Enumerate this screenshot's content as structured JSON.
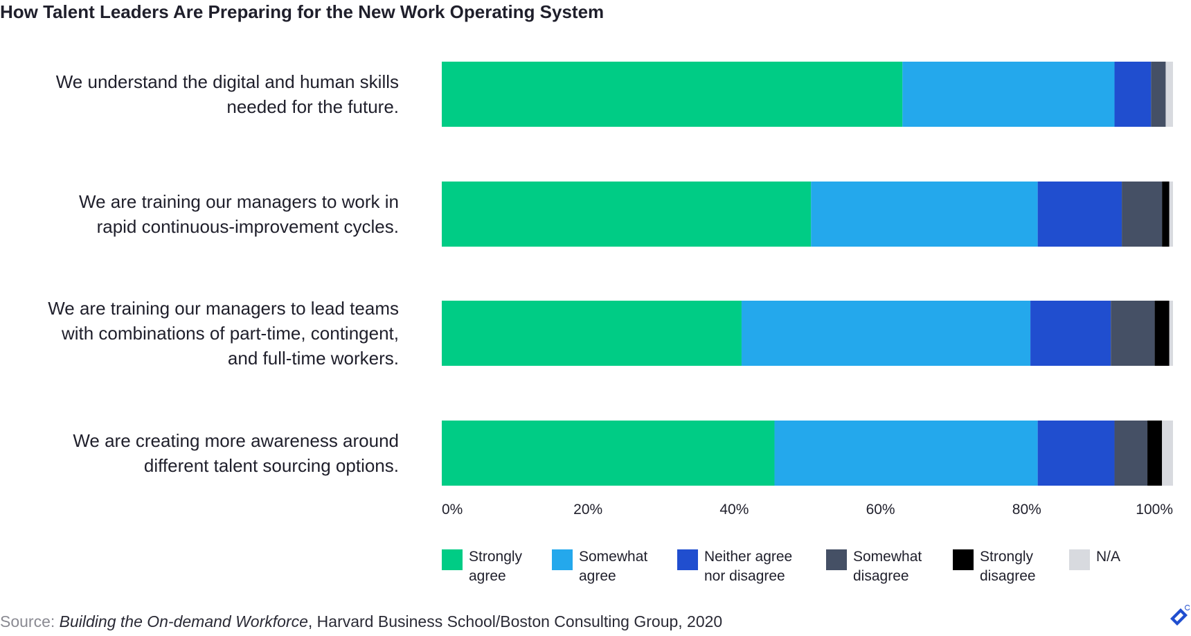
{
  "chart_data": {
    "type": "bar",
    "orientation": "horizontal",
    "stacked": true,
    "title": "How Talent Leaders Are Preparing for the New Work Operating System",
    "categories": [
      [
        "We understand the digital and human skills",
        "needed for the future."
      ],
      [
        "We are training our managers to work in",
        "rapid continuous-improvement cycles."
      ],
      [
        "We are training our managers to lead teams",
        "with combinations of part-time, contingent,",
        "and full-time workers."
      ],
      [
        "We are creating more awareness around",
        "different talent sourcing options."
      ]
    ],
    "series": [
      {
        "name": [
          "Strongly",
          "agree"
        ],
        "color": "#00cc85",
        "values": [
          63,
          50.5,
          41,
          45.5
        ]
      },
      {
        "name": [
          "Somewhat",
          "agree"
        ],
        "color": "#24a8ec",
        "values": [
          29,
          31,
          39.5,
          36
        ]
      },
      {
        "name": [
          "Neither agree",
          "nor disagree"
        ],
        "color": "#204ecf",
        "values": [
          5,
          11.5,
          11,
          10.5
        ]
      },
      {
        "name": [
          "Somewhat",
          "disagree"
        ],
        "color": "#455065",
        "values": [
          2,
          5.5,
          6,
          4.5
        ]
      },
      {
        "name": [
          "Strongly",
          "disagree"
        ],
        "color": "#000000",
        "values": [
          0,
          1,
          2,
          2
        ]
      },
      {
        "name": [
          "N/A"
        ],
        "color": "#d8dadf",
        "values": [
          1,
          0.5,
          0.5,
          1.5
        ]
      }
    ],
    "xlim": [
      0,
      100
    ],
    "x_ticks": [
      "0%",
      "20%",
      "40%",
      "60%",
      "80%",
      "100%"
    ],
    "grid": false,
    "legend_position": "bottom"
  },
  "source": {
    "prefix": "Source:",
    "title": "Building the On-demand Workforce",
    "rest": ", Harvard Business School/Boston Consulting Group, 2020"
  },
  "brand": {
    "icon": "toptal-logo-icon",
    "color": "#204ecf"
  }
}
